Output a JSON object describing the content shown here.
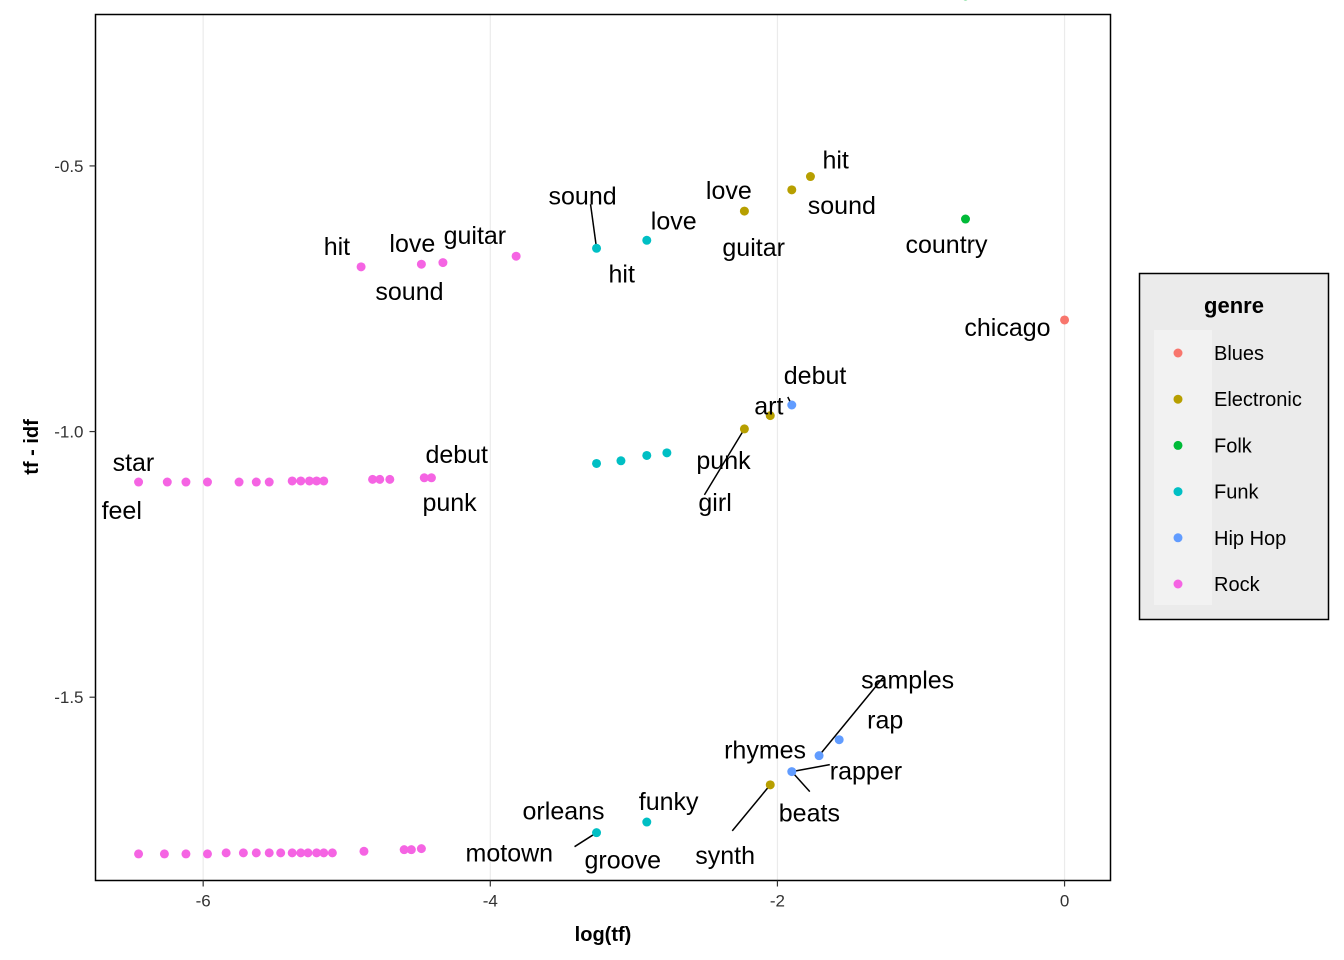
{
  "chart_data": {
    "type": "scatter",
    "title": "",
    "xlabel": "log(tf)",
    "ylabel": "tf - idf",
    "xlim": [
      -6.75,
      0.32
    ],
    "ylim": [
      -1.845,
      -0.215
    ],
    "x_ticks": [
      -6,
      -4,
      -2,
      0
    ],
    "x_tick_labels": [
      "-6",
      "-4",
      "-2",
      "0"
    ],
    "y_ticks": [
      -0.5,
      -1.0,
      -1.5
    ],
    "y_tick_labels": [
      "-0.5",
      "-1.0",
      "-1.5"
    ],
    "grid": "vertical major lines only",
    "legend": {
      "title": "genre",
      "placement": "right",
      "entries": [
        "Blues",
        "Electronic",
        "Folk",
        "Funk",
        "Hip Hop",
        "Rock"
      ]
    },
    "colors": {
      "Blues": "#F8766D",
      "Electronic": "#B79F00",
      "Folk": "#00BA38",
      "Funk": "#00BFC4",
      "Hip Hop": "#619CFF",
      "Rock": "#F564E3"
    },
    "series": [
      {
        "name": "Blues",
        "points": [
          [
            0.0,
            -0.79
          ]
        ]
      },
      {
        "name": "Electronic",
        "points": [
          [
            -1.77,
            -0.52
          ],
          [
            -1.9,
            -0.545
          ],
          [
            -2.23,
            -0.585
          ],
          [
            -2.23,
            -0.995
          ],
          [
            -2.05,
            -0.97
          ],
          [
            -2.05,
            -1.665
          ]
        ]
      },
      {
        "name": "Folk",
        "points": [
          [
            -0.69,
            -0.18
          ],
          [
            -0.69,
            -0.6
          ]
        ]
      },
      {
        "name": "Funk",
        "points": [
          [
            -3.26,
            -0.655
          ],
          [
            -2.91,
            -0.64
          ],
          [
            -3.26,
            -1.06
          ],
          [
            -3.09,
            -1.055
          ],
          [
            -2.91,
            -1.045
          ],
          [
            -2.77,
            -1.04
          ],
          [
            -3.26,
            -1.755
          ],
          [
            -2.91,
            -1.735
          ]
        ]
      },
      {
        "name": "Hip Hop",
        "points": [
          [
            -1.9,
            -0.95
          ],
          [
            -1.57,
            -1.58
          ],
          [
            -1.71,
            -1.61
          ],
          [
            -1.9,
            -1.64
          ]
        ]
      },
      {
        "name": "Rock",
        "points": [
          [
            -4.9,
            -0.69
          ],
          [
            -4.48,
            -0.685
          ],
          [
            -4.33,
            -0.682
          ],
          [
            -3.82,
            -0.67
          ],
          [
            -6.45,
            -1.095
          ],
          [
            -6.25,
            -1.095
          ],
          [
            -6.12,
            -1.095
          ],
          [
            -5.97,
            -1.095
          ],
          [
            -5.75,
            -1.095
          ],
          [
            -5.63,
            -1.095
          ],
          [
            -5.54,
            -1.095
          ],
          [
            -5.38,
            -1.093
          ],
          [
            -5.32,
            -1.093
          ],
          [
            -5.26,
            -1.093
          ],
          [
            -5.21,
            -1.093
          ],
          [
            -5.16,
            -1.093
          ],
          [
            -4.82,
            -1.09
          ],
          [
            -4.77,
            -1.09
          ],
          [
            -4.7,
            -1.09
          ],
          [
            -4.46,
            -1.087
          ],
          [
            -4.41,
            -1.087
          ],
          [
            -6.45,
            -1.795
          ],
          [
            -6.27,
            -1.795
          ],
          [
            -6.12,
            -1.795
          ],
          [
            -5.97,
            -1.795
          ],
          [
            -5.84,
            -1.793
          ],
          [
            -5.72,
            -1.793
          ],
          [
            -5.63,
            -1.793
          ],
          [
            -5.54,
            -1.793
          ],
          [
            -5.46,
            -1.793
          ],
          [
            -5.38,
            -1.793
          ],
          [
            -5.32,
            -1.793
          ],
          [
            -5.27,
            -1.793
          ],
          [
            -5.21,
            -1.793
          ],
          [
            -5.16,
            -1.793
          ],
          [
            -5.1,
            -1.793
          ],
          [
            -4.88,
            -1.79
          ],
          [
            -4.6,
            -1.787
          ],
          [
            -4.55,
            -1.787
          ],
          [
            -4.48,
            -1.785
          ]
        ]
      }
    ],
    "annotations": [
      {
        "text": "guitar",
        "x": -0.69,
        "y": -0.18
      },
      {
        "text": "hit",
        "x": -1.77,
        "y": -0.52
      },
      {
        "text": "love",
        "x": -1.9,
        "y": -0.545
      },
      {
        "text": "sound",
        "x": -1.9,
        "y": -0.545
      },
      {
        "text": "guitar",
        "x": -2.23,
        "y": -0.585
      },
      {
        "text": "country",
        "x": -0.69,
        "y": -0.6
      },
      {
        "text": "chicago",
        "x": 0.0,
        "y": -0.79
      },
      {
        "text": "sound",
        "x": -3.26,
        "y": -0.655
      },
      {
        "text": "love",
        "x": -2.91,
        "y": -0.64
      },
      {
        "text": "hit",
        "x": -3.26,
        "y": -0.655
      },
      {
        "text": "guitar",
        "x": -3.82,
        "y": -0.67
      },
      {
        "text": "hit",
        "x": -4.9,
        "y": -0.69
      },
      {
        "text": "love",
        "x": -4.48,
        "y": -0.685
      },
      {
        "text": "sound",
        "x": -4.48,
        "y": -0.685
      },
      {
        "text": "debut",
        "x": -1.9,
        "y": -0.95
      },
      {
        "text": "art",
        "x": -2.05,
        "y": -0.97
      },
      {
        "text": "punk",
        "x": -2.23,
        "y": -0.995
      },
      {
        "text": "girl",
        "x": -2.23,
        "y": -0.995
      },
      {
        "text": "star",
        "x": -6.45,
        "y": -1.095
      },
      {
        "text": "feel",
        "x": -6.45,
        "y": -1.095
      },
      {
        "text": "debut",
        "x": -4.41,
        "y": -1.087
      },
      {
        "text": "punk",
        "x": -4.41,
        "y": -1.087
      },
      {
        "text": "samples",
        "x": -1.71,
        "y": -1.61
      },
      {
        "text": "rap",
        "x": -1.57,
        "y": -1.58
      },
      {
        "text": "rhymes",
        "x": -1.71,
        "y": -1.61
      },
      {
        "text": "rapper",
        "x": -1.9,
        "y": -1.64
      },
      {
        "text": "beats",
        "x": -1.9,
        "y": -1.64
      },
      {
        "text": "funky",
        "x": -2.91,
        "y": -1.735
      },
      {
        "text": "orleans",
        "x": -3.26,
        "y": -1.755
      },
      {
        "text": "synth",
        "x": -2.05,
        "y": -1.665
      },
      {
        "text": "motown",
        "x": -3.26,
        "y": -1.755
      },
      {
        "text": "groove",
        "x": -3.26,
        "y": -1.755
      }
    ]
  }
}
